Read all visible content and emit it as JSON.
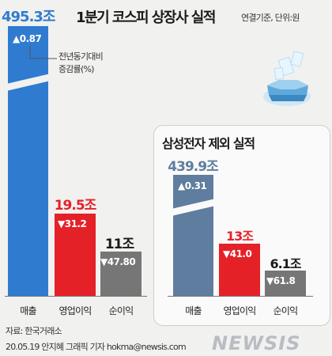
{
  "title": "1분기 코스피 상장사 실적",
  "unit_note": "연결기준, 단위:원",
  "legend_note": "전년동기대비\n증감률(%)",
  "inset_title": "삼성전자 제외 실적",
  "source": "자료: 한국거래소",
  "credit": "20.05.19 안지혜 그래픽 기자 hokma@newsis.com",
  "logo": "NEWSIS",
  "colors": {
    "blue_main": "#2f7bd0",
    "blue_inset": "#5f7d9e",
    "red": "#e52128",
    "gray": "#767676",
    "red_text": "#e52128"
  },
  "chart_data": [
    {
      "type": "bar",
      "axis_break_on_first_bar": true,
      "categories": [
        "매출",
        "영업이익",
        "순이익"
      ],
      "value_labels": [
        "495.3조",
        "19.5조",
        "11조"
      ],
      "change_labels": [
        "▲0.87",
        "▼31.2",
        "▼47.80"
      ],
      "values": [
        495.3,
        19.5,
        11
      ],
      "change_pct": [
        0.87,
        -31.2,
        -47.8
      ]
    },
    {
      "type": "bar",
      "title": "삼성전자 제외 실적",
      "axis_break_on_first_bar": true,
      "categories": [
        "매출",
        "영업이익",
        "순이익"
      ],
      "value_labels": [
        "439.9조",
        "13조",
        "6.1조"
      ],
      "change_labels": [
        "▲0.31",
        "▼41.0",
        "▼61.8"
      ],
      "values": [
        439.9,
        13,
        6.1
      ],
      "change_pct": [
        0.31,
        -41.0,
        -61.8
      ]
    }
  ]
}
